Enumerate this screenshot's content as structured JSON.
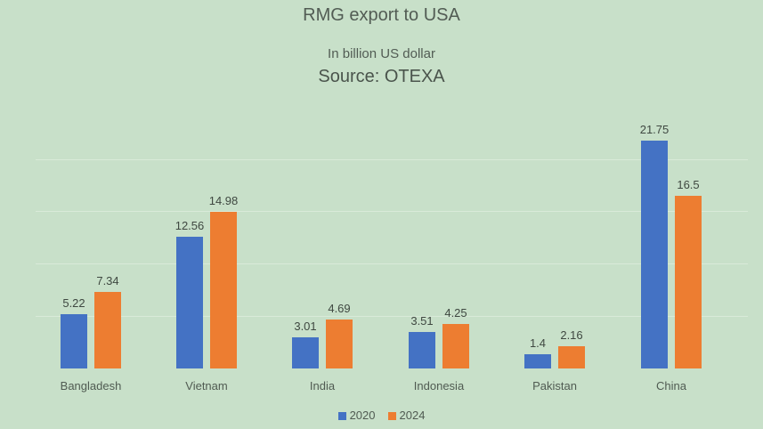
{
  "chart_data": {
    "type": "bar",
    "title": "RMG export to USA",
    "subtitle": "In billion US dollar",
    "source": "Source: OTEXA",
    "xlabel": "",
    "ylabel": "",
    "categories": [
      "Bangladesh",
      "Vietnam",
      "India",
      "Indonesia",
      "Pakistan",
      "China"
    ],
    "series": [
      {
        "name": "2020",
        "color": "#4472c4",
        "values": [
          5.22,
          12.56,
          3.01,
          3.51,
          1.4,
          21.75
        ]
      },
      {
        "name": "2024",
        "color": "#ed7d31",
        "values": [
          7.34,
          14.98,
          4.69,
          4.25,
          2.16,
          16.5
        ]
      }
    ],
    "data_labels": {
      "2020": [
        "5.22",
        "12.56",
        "3.01",
        "3.51",
        "1.4",
        "21.75"
      ],
      "2024": [
        "7.34",
        "14.98",
        "4.69",
        "4.25",
        "2.16",
        "16.5"
      ]
    },
    "ylim": [
      0,
      25
    ],
    "grid": true,
    "legend_position": "bottom"
  }
}
